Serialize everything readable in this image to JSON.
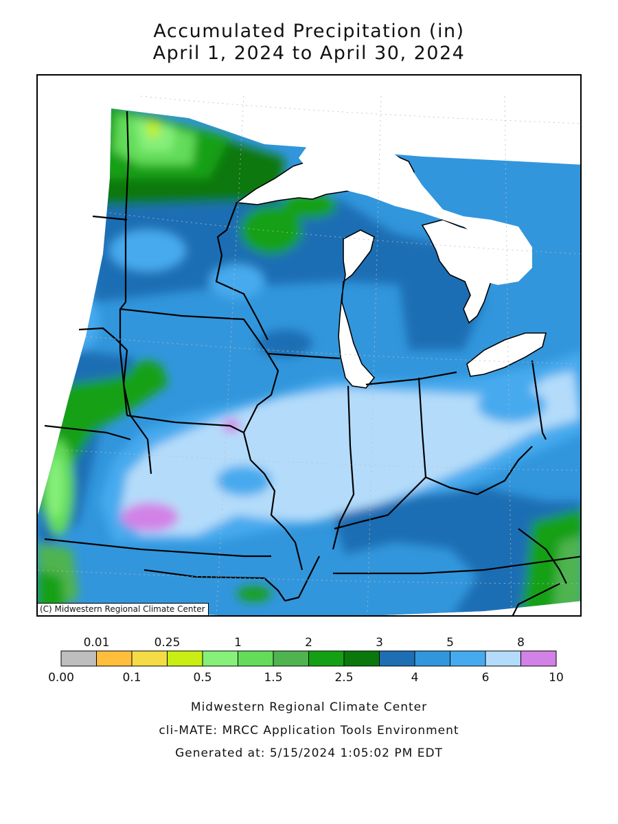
{
  "title_line1": "Accumulated Precipitation (in)",
  "title_line2": "April 1, 2024 to April 30, 2024",
  "map_credit": "(C) Midwestern Regional Climate Center",
  "legend": {
    "bins": [
      {
        "color": "#bebebe"
      },
      {
        "color": "#ffbe3c"
      },
      {
        "color": "#f5dc46"
      },
      {
        "color": "#c8ee14"
      },
      {
        "color": "#86f07a"
      },
      {
        "color": "#64dc5a"
      },
      {
        "color": "#4fb44f"
      },
      {
        "color": "#14a014"
      },
      {
        "color": "#0a780a"
      },
      {
        "color": "#1e6eb4"
      },
      {
        "color": "#3296dc"
      },
      {
        "color": "#46aaee"
      },
      {
        "color": "#b4dcfa"
      },
      {
        "color": "#d282e6"
      }
    ],
    "bottom_labels": [
      "0.00",
      "0.1",
      "0.5",
      "1.5",
      "2.5",
      "4",
      "6",
      "10"
    ],
    "top_labels": [
      "0.01",
      "0.25",
      "1",
      "2",
      "3",
      "5",
      "8"
    ]
  },
  "footer": {
    "line1": "Midwestern Regional Climate Center",
    "line2": "cli-MATE: MRCC Application Tools Environment",
    "line3": "Generated at: 5/15/2024 1:05:02 PM EDT"
  }
}
